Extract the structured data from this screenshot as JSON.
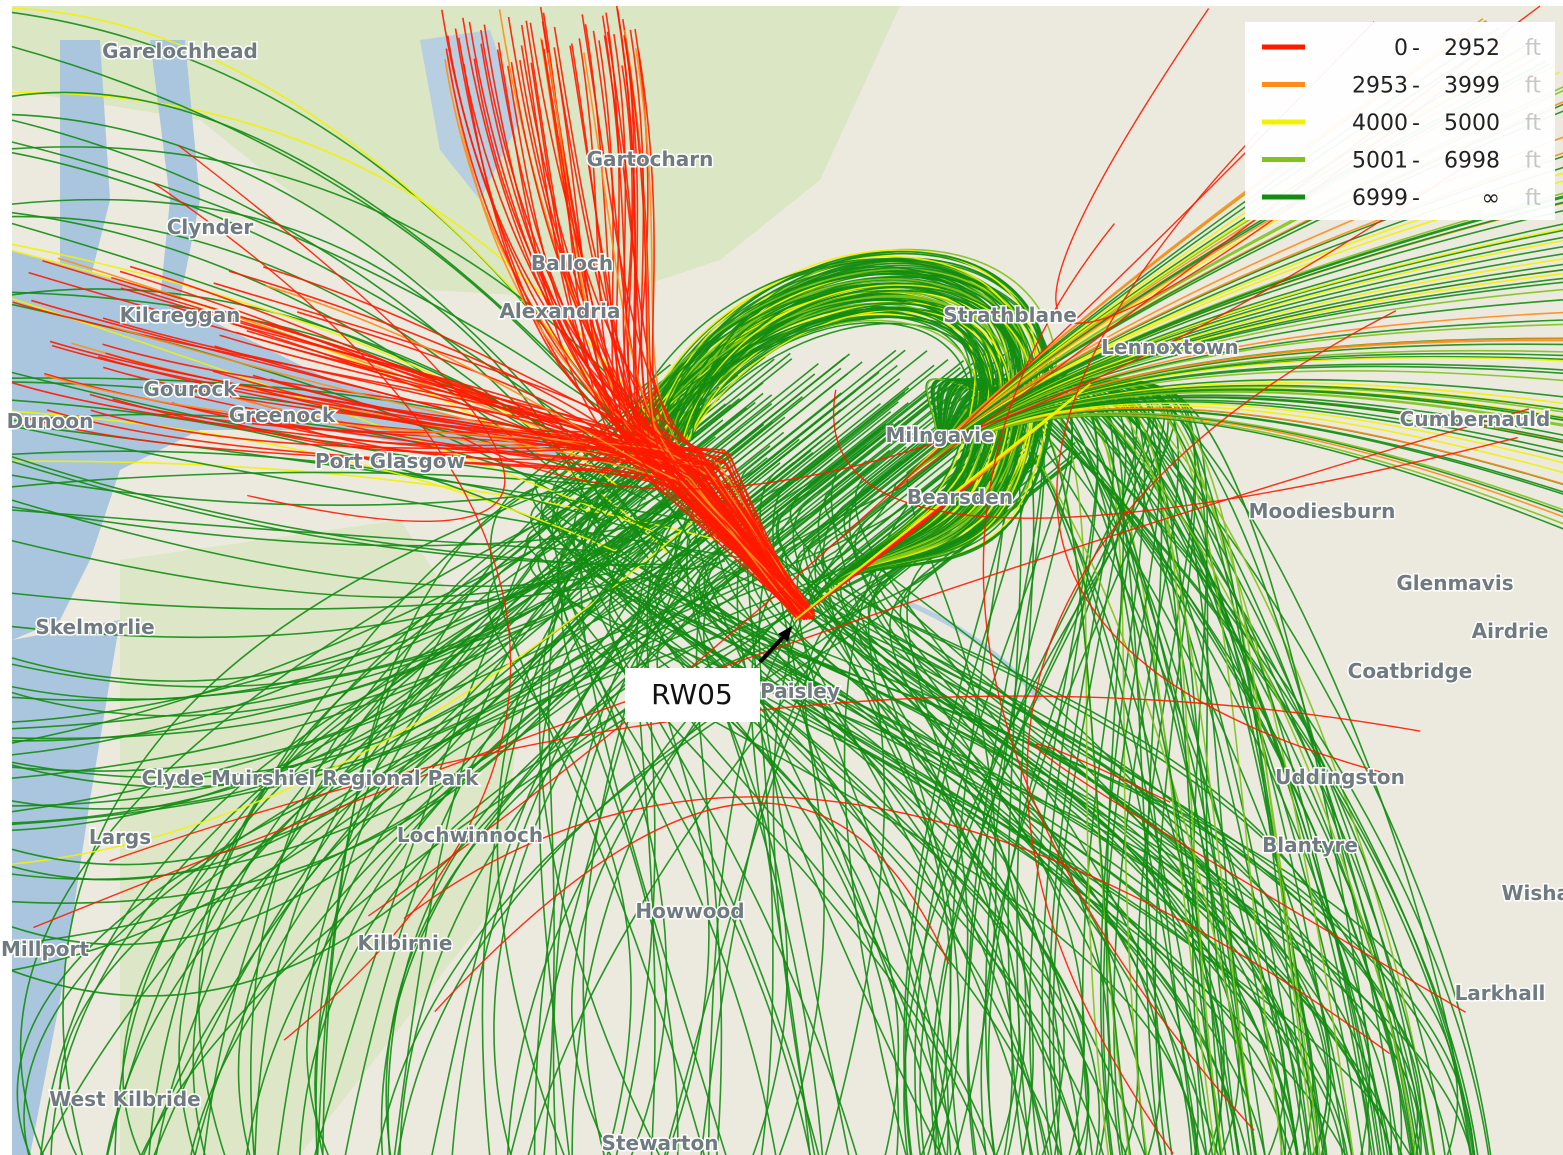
{
  "map": {
    "places": [
      "Garelochhead",
      "Clynder",
      "Kilcreggan",
      "Gourock",
      "Greenock",
      "Port Glasgow",
      "Dunoon",
      "Gartocharn",
      "Balloch",
      "Alexandria",
      "Strathblane",
      "Lennoxtown",
      "Milngavie",
      "Bearsden",
      "Cumbernauld",
      "Moodiesburn",
      "Glenmavis",
      "Airdrie",
      "Coatbridge",
      "Paisley",
      "Uddingston",
      "Blantyre",
      "Wishaw",
      "Larkhall",
      "Skelmorlie",
      "Largs",
      "Clyde Muirshiel Regional Park",
      "Lochwinnoch",
      "Kilbirnie",
      "Howwood",
      "Millport",
      "West Kilbride",
      "Stewarton"
    ],
    "legend": [
      {
        "from": 0,
        "to": 2952,
        "unit": "ft",
        "color": "#ff1a00"
      },
      {
        "from": 2953,
        "to": 3999,
        "unit": "ft",
        "color": "#ff8c1a"
      },
      {
        "from": 4000,
        "to": 5000,
        "unit": "ft",
        "color": "#f2f200"
      },
      {
        "from": 5001,
        "to": 6998,
        "unit": "ft",
        "color": "#7fc31c"
      },
      {
        "from": 6999,
        "to": "∞",
        "unit": "ft",
        "color": "#138c13"
      }
    ],
    "callout": "RW05"
  }
}
